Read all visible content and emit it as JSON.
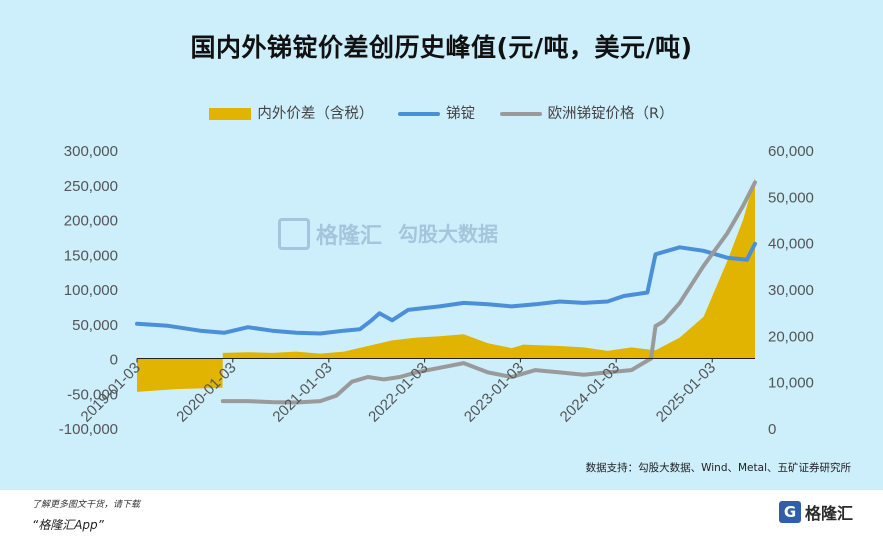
{
  "title": "国内外锑锭价差创历史峰值(元/吨，美元/吨)",
  "legend": {
    "spread": "内外价差（含税）",
    "domestic": "锑锭",
    "europe": "欧洲锑锭价格（R）"
  },
  "colors": {
    "spread": "#e0b400",
    "domestic": "#4a8fd8",
    "europe": "#9a9a9a",
    "background": "#cdeefb"
  },
  "source": "数据支持：勾股大数据、Wind、Metal、五矿证券研究所",
  "watermark": {
    "left": "格隆汇",
    "right": "勾股大数据"
  },
  "footer": {
    "line1": "了解更多图文干货，请下载",
    "line2": "“格隆汇App”",
    "logo": "格隆汇",
    "logo_icon": "G"
  },
  "chart_data": {
    "type": "line",
    "x_tick_labels": [
      "2019-01-03",
      "2020-01-03",
      "2021-01-03",
      "2022-01-03",
      "2023-01-03",
      "2024-01-03",
      "2025-01-03"
    ],
    "y_left": {
      "ylim": [
        -100000,
        300000
      ],
      "ticks": [
        "300,000",
        "250,000",
        "200,000",
        "150,000",
        "100,000",
        "50,000",
        "0",
        "-50,000",
        "-100,000"
      ]
    },
    "y_right": {
      "ylim": [
        0,
        60000
      ],
      "ticks": [
        "60,000",
        "50,000",
        "40,000",
        "30,000",
        "20,000",
        "10,000",
        "0"
      ]
    },
    "grid": false,
    "legend_position": "top",
    "series": [
      {
        "name": "内外价差（含税）",
        "type": "area",
        "axis": "left",
        "points": [
          [
            "2019-01-03",
            -48000
          ],
          [
            "2019-06-01",
            -44000
          ],
          [
            "2019-11-25",
            -42000
          ],
          [
            "2019-11-26",
            8000
          ],
          [
            "2020-03-01",
            9000
          ],
          [
            "2020-06-01",
            8000
          ],
          [
            "2020-09-01",
            10000
          ],
          [
            "2020-12-01",
            7000
          ],
          [
            "2021-03-01",
            10000
          ],
          [
            "2021-06-01",
            18000
          ],
          [
            "2021-09-01",
            26000
          ],
          [
            "2021-12-01",
            30000
          ],
          [
            "2022-03-01",
            32000
          ],
          [
            "2022-06-01",
            35000
          ],
          [
            "2022-09-01",
            22000
          ],
          [
            "2022-12-01",
            15000
          ],
          [
            "2023-01-15",
            20000
          ],
          [
            "2023-06-01",
            18000
          ],
          [
            "2023-09-01",
            16000
          ],
          [
            "2023-12-01",
            11000
          ],
          [
            "2024-03-01",
            16000
          ],
          [
            "2024-06-01",
            12000
          ],
          [
            "2024-09-01",
            30000
          ],
          [
            "2024-12-01",
            60000
          ],
          [
            "2025-03-01",
            140000
          ],
          [
            "2025-05-01",
            200000
          ],
          [
            "2025-06-15",
            260000
          ]
        ]
      },
      {
        "name": "锑锭",
        "type": "line",
        "axis": "left",
        "points": [
          [
            "2019-01-03",
            50000
          ],
          [
            "2019-05-01",
            47000
          ],
          [
            "2019-09-01",
            40000
          ],
          [
            "2019-12-01",
            37000
          ],
          [
            "2020-03-01",
            45000
          ],
          [
            "2020-06-01",
            40000
          ],
          [
            "2020-09-01",
            37000
          ],
          [
            "2020-12-01",
            36000
          ],
          [
            "2021-03-01",
            40000
          ],
          [
            "2021-05-01",
            42000
          ],
          [
            "2021-06-15",
            55000
          ],
          [
            "2021-07-15",
            65000
          ],
          [
            "2021-09-01",
            55000
          ],
          [
            "2021-11-01",
            70000
          ],
          [
            "2022-03-01",
            75000
          ],
          [
            "2022-06-01",
            80000
          ],
          [
            "2022-09-01",
            78000
          ],
          [
            "2022-12-01",
            75000
          ],
          [
            "2023-03-01",
            78000
          ],
          [
            "2023-06-01",
            82000
          ],
          [
            "2023-09-01",
            80000
          ],
          [
            "2023-12-01",
            82000
          ],
          [
            "2024-02-01",
            90000
          ],
          [
            "2024-05-01",
            95000
          ],
          [
            "2024-06-01",
            150000
          ],
          [
            "2024-09-01",
            160000
          ],
          [
            "2024-12-01",
            155000
          ],
          [
            "2025-03-01",
            145000
          ],
          [
            "2025-05-15",
            142000
          ],
          [
            "2025-06-15",
            165000
          ]
        ]
      },
      {
        "name": "欧洲锑锭价格（R）",
        "type": "line",
        "axis": "right",
        "points": [
          [
            "2019-11-26",
            5800
          ],
          [
            "2020-03-01",
            5800
          ],
          [
            "2020-06-01",
            5600
          ],
          [
            "2020-09-01",
            5500
          ],
          [
            "2020-12-01",
            5800
          ],
          [
            "2021-02-01",
            7000
          ],
          [
            "2021-04-01",
            10000
          ],
          [
            "2021-06-01",
            11000
          ],
          [
            "2021-08-01",
            10500
          ],
          [
            "2021-10-01",
            11000
          ],
          [
            "2021-12-01",
            12000
          ],
          [
            "2022-03-01",
            13000
          ],
          [
            "2022-06-01",
            14000
          ],
          [
            "2022-09-01",
            12000
          ],
          [
            "2022-12-01",
            11000
          ],
          [
            "2023-03-01",
            12500
          ],
          [
            "2023-06-01",
            12000
          ],
          [
            "2023-09-01",
            11500
          ],
          [
            "2023-12-01",
            12000
          ],
          [
            "2024-03-01",
            12500
          ],
          [
            "2024-05-15",
            15000
          ],
          [
            "2024-06-01",
            22000
          ],
          [
            "2024-07-01",
            23000
          ],
          [
            "2024-09-01",
            27000
          ],
          [
            "2024-12-01",
            35000
          ],
          [
            "2025-03-01",
            42000
          ],
          [
            "2025-05-01",
            48000
          ],
          [
            "2025-06-15",
            53000
          ]
        ]
      }
    ]
  }
}
